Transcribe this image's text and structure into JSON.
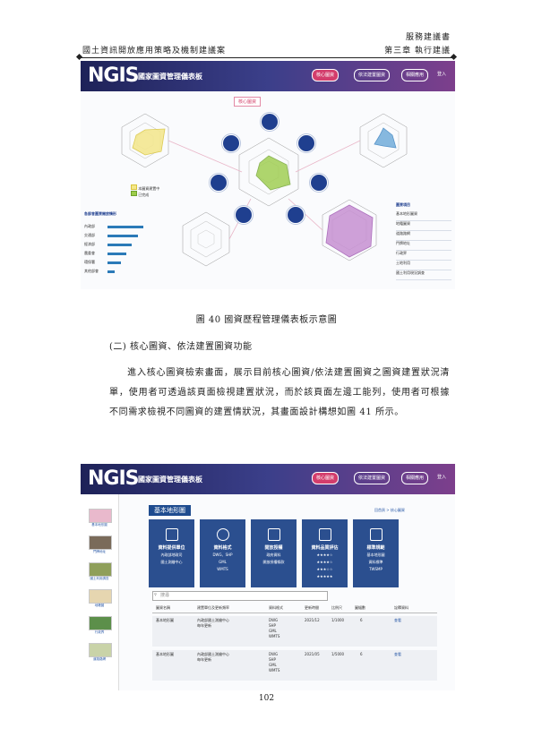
{
  "header": {
    "doc_type": "服務建議書",
    "project_title": "國土資訊開放應用策略及機制建議案",
    "chapter": "第三章 執行建議"
  },
  "screenshot1": {
    "logo": "NGIS",
    "app_title": "國家圖資管理儀表板",
    "nav_buttons": [
      "核心圖資",
      "依法建置圖資",
      "相關應用"
    ],
    "user_label": "登入",
    "badge": "核心圖資",
    "center_nodes": [
      "核心圖資",
      "依法建置圖資",
      "相關應用",
      "標準規範",
      "更新維護",
      "開放授權",
      "品質管理"
    ],
    "legend_items": [
      "本圖資建置中",
      "已完成"
    ],
    "ranking_title": "各部會圖資開放情形",
    "ranking_labels": [
      "內政部",
      "交通部",
      "經濟部",
      "農委會",
      "環保署",
      "其他部會"
    ],
    "ranking_values": [
      0.95,
      0.8,
      0.62,
      0.5,
      0.35,
      0.2
    ],
    "right_list_title": "圖資項目",
    "right_list": [
      "基本地形圖資",
      "地籍圖資",
      "道路路網",
      "門牌地址",
      "行政界",
      "土地利用",
      "國土利用現況調查"
    ]
  },
  "figure_caption": "圖 40 國資歷程管理儀表板示意圖",
  "section_title": "(二) 核心圖資、依法建置圖資功能",
  "paragraph": "進入核心圖資檢索畫面，展示目前核心圖資/依法建置圖資之圖資建置狀況清單，使用者可透過該頁面檢視建置狀況，而於該頁面左邊工能列，使用者可根據不同需求檢視不同圖資的建置情狀況，其畫面設計構想如圖 41 所示。",
  "screenshot2": {
    "logo": "NGIS",
    "app_title": "國家圖資管理儀表板",
    "nav_buttons": [
      "核心圖資",
      "依法建置圖資",
      "相關應用"
    ],
    "user_label": "登入",
    "sidebar": [
      "基本地形圖",
      "門牌地址",
      "國土利用調查",
      "地籍圖",
      "行政界",
      "道路路網"
    ],
    "section_heading": "基本地形圖",
    "top_link": "回首頁 > 核心圖資",
    "cards": [
      {
        "title": "資料提供單位",
        "lines": [
          "內政部地政司",
          "國土測繪中心"
        ]
      },
      {
        "title": "資料格式",
        "lines": [
          "DWG、SHP",
          "GML",
          "WMTS"
        ]
      },
      {
        "title": "開放授權",
        "lines": [
          "政府資料",
          "開放授權條款"
        ]
      },
      {
        "title": "資料品質評估",
        "lines": [
          "★★★★☆",
          "★★★★☆",
          "★★★☆☆",
          "★★★★★"
        ]
      },
      {
        "title": "標準規範",
        "lines": [
          "基本地形圖",
          "資料標準",
          "TWSMP"
        ]
      }
    ],
    "search_placeholder": "搜尋",
    "table_headers": [
      "圖資名稱",
      "建置單位及更新頻率",
      "資料格式",
      "更新時間",
      "比例尺",
      "圖幅數",
      "詮釋資料"
    ],
    "rows": [
      {
        "name": "基本地形圖",
        "unit": [
          "內政部國土測繪中心",
          "每年更新"
        ],
        "format": [
          "DWG",
          "SHP",
          "GML",
          "WMTS"
        ],
        "time": "2021/12",
        "scale": "1/1000",
        "count": "6",
        "meta": "查看"
      },
      {
        "name": "基本地形圖",
        "unit": [
          "內政部國土測繪中心",
          "每年更新"
        ],
        "format": [
          "DWG",
          "SHP",
          "GML",
          "WMTS"
        ],
        "time": "2021/05",
        "scale": "1/5000",
        "count": "6",
        "meta": "查看"
      }
    ]
  },
  "page_number": "102"
}
